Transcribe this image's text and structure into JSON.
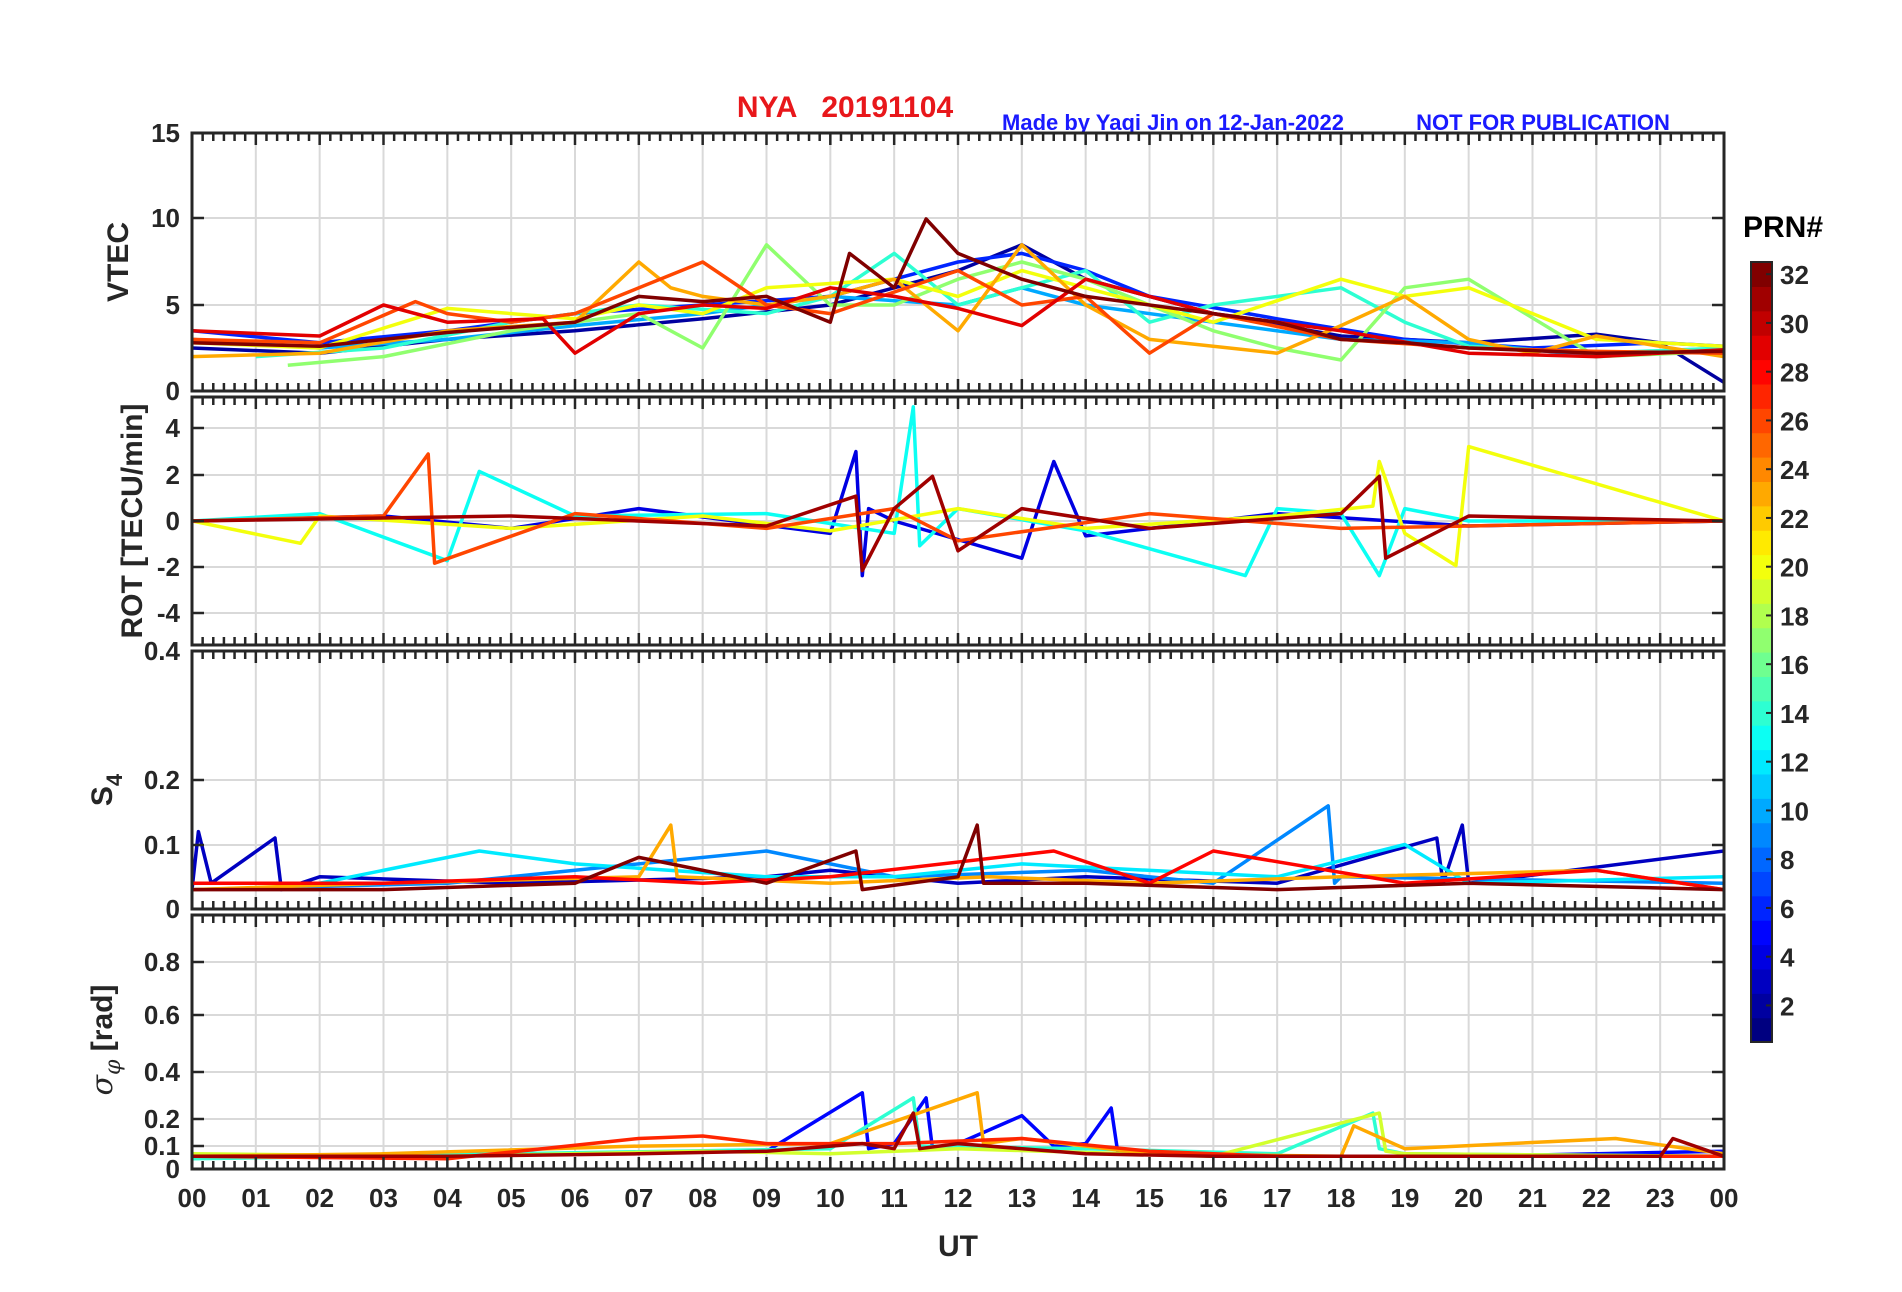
{
  "header": {
    "station_date": "NYA   20191104",
    "credit": "Made by Yaqi Jin on 12-Jan-2022",
    "notice": "NOT FOR PUBLICATION"
  },
  "colors": {
    "title": "#e8171b",
    "credit": "#1a1aff",
    "axes": "#262626",
    "grid": "#d9d9d9"
  },
  "colorbar": {
    "title": "PRN#",
    "range": [
      1,
      32
    ],
    "ticks": [
      "2",
      "4",
      "6",
      "8",
      "10",
      "12",
      "14",
      "16",
      "18",
      "20",
      "22",
      "24",
      "26",
      "28",
      "30",
      "32"
    ],
    "colormap": "jet"
  },
  "chart_data": [
    {
      "type": "line",
      "panel": "vtec",
      "ylabel": "VTEC",
      "ylim": [
        0,
        15
      ],
      "yticks": [
        "0",
        "5",
        "10",
        "15"
      ],
      "xlim": [
        0,
        24
      ],
      "grid": true,
      "series": [
        {
          "prn": 2,
          "x": [
            0,
            2,
            4,
            6,
            8,
            10,
            12,
            13,
            14,
            16,
            18,
            20,
            22,
            23,
            24
          ],
          "y": [
            2.5,
            2.2,
            3,
            3.5,
            4.2,
            5,
            7,
            8.5,
            6.5,
            4.5,
            3.2,
            2.8,
            3.3,
            2.8,
            0.5
          ]
        },
        {
          "prn": 6,
          "x": [
            0,
            2,
            4,
            6,
            8,
            10,
            11,
            12,
            13,
            14,
            15,
            17,
            19,
            21,
            23,
            24
          ],
          "y": [
            3.5,
            2.8,
            3.5,
            4.5,
            5,
            5.5,
            6.5,
            7.5,
            8,
            7,
            5.5,
            4.2,
            3,
            2.5,
            2.8,
            2.6
          ]
        },
        {
          "prn": 10,
          "x": [
            0,
            2,
            4,
            6,
            8,
            9,
            10,
            12,
            13,
            14,
            16,
            18,
            20,
            22,
            24
          ],
          "y": [
            3,
            2.5,
            3,
            3.8,
            4.5,
            5,
            5.5,
            5,
            6,
            5,
            4,
            3,
            2.8,
            2,
            2.4
          ]
        },
        {
          "prn": 14,
          "x": [
            1,
            3,
            5,
            7,
            9,
            10,
            11,
            12,
            13,
            14,
            15,
            16,
            18,
            19,
            20,
            22,
            24
          ],
          "y": [
            2,
            2.5,
            4,
            5,
            4.5,
            5.5,
            8,
            5,
            6,
            7,
            4,
            5,
            6,
            4,
            2.6,
            2.2,
            2.5
          ]
        },
        {
          "prn": 17,
          "x": [
            1.5,
            3,
            5,
            7,
            8,
            9,
            10,
            11,
            12,
            13,
            14,
            15,
            16,
            17,
            18,
            19,
            20,
            22,
            24
          ],
          "y": [
            1.5,
            2,
            3.5,
            4.5,
            2.5,
            8.5,
            5,
            5,
            6.5,
            7.5,
            6.5,
            5,
            3.5,
            2.5,
            1.8,
            6,
            6.5,
            2,
            2.3
          ]
        },
        {
          "prn": 20,
          "x": [
            0,
            2,
            4,
            6,
            7,
            8,
            9,
            11,
            12,
            13,
            14,
            16,
            18,
            19,
            20,
            22,
            24
          ],
          "y": [
            2.8,
            2.5,
            4.8,
            4.2,
            5,
            4.5,
            6,
            6.5,
            5.5,
            7,
            6,
            4,
            6.5,
            5.5,
            6,
            3,
            2.6
          ]
        },
        {
          "prn": 23,
          "x": [
            0,
            2,
            4,
            6,
            7,
            7.5,
            8,
            9,
            10,
            11,
            12,
            13,
            14,
            15,
            17,
            18,
            19,
            20,
            21,
            22,
            24
          ],
          "y": [
            2,
            2.2,
            3.5,
            4,
            7.5,
            6,
            5.5,
            5,
            5.5,
            6.5,
            3.5,
            8.5,
            5,
            3,
            2.2,
            3.8,
            5.5,
            3,
            2.2,
            3.2,
            2
          ]
        },
        {
          "prn": 26,
          "x": [
            0,
            2,
            3.5,
            4,
            5,
            6,
            8,
            9,
            10,
            12,
            13,
            14,
            15,
            16,
            18,
            20,
            22,
            24
          ],
          "y": [
            3,
            2.8,
            5.2,
            4.5,
            4,
            4.5,
            7.5,
            5,
            4.5,
            7,
            5,
            5.5,
            2.2,
            4.5,
            3,
            2.5,
            2.3,
            2.2
          ]
        },
        {
          "prn": 29,
          "x": [
            0,
            2,
            3,
            4,
            5.5,
            6,
            7,
            8,
            9,
            10,
            11,
            12,
            13,
            14,
            16,
            18,
            20,
            22,
            24
          ],
          "y": [
            3.5,
            3.2,
            5,
            4,
            4.2,
            2.2,
            4.5,
            5,
            4.8,
            6,
            5.5,
            4.8,
            3.8,
            6.5,
            4.5,
            3.5,
            2.2,
            2,
            2.4
          ]
        },
        {
          "prn": 32,
          "x": [
            0,
            2,
            4,
            6,
            7,
            8,
            9,
            10,
            10.3,
            11,
            11.5,
            12,
            13,
            14,
            16,
            17,
            18,
            19,
            20,
            22,
            24
          ],
          "y": [
            2.8,
            2.6,
            3.4,
            4,
            5.5,
            5.2,
            5.5,
            4,
            8,
            6,
            10,
            8,
            6.5,
            5.5,
            4.5,
            4,
            3,
            2.8,
            2.5,
            2.2,
            2.3
          ]
        }
      ]
    },
    {
      "type": "line",
      "panel": "rot",
      "ylabel": "ROT [TECU/min]",
      "ylim": [
        -5,
        5
      ],
      "yticks": [
        "-4",
        "-2",
        "0",
        "2",
        "4"
      ],
      "xlim": [
        0,
        24
      ],
      "grid": true,
      "series": [
        {
          "prn": 4,
          "x": [
            0,
            3,
            5,
            7,
            10,
            10.4,
            10.5,
            10.6,
            11,
            13,
            13.5,
            14,
            17,
            20,
            24
          ],
          "y": [
            0,
            0.2,
            -0.3,
            0.5,
            -0.5,
            2.8,
            -2.2,
            0.5,
            0,
            -1.5,
            2.4,
            -0.6,
            0.3,
            -0.2,
            0
          ]
        },
        {
          "prn": 13,
          "x": [
            0,
            2,
            4,
            4.5,
            6,
            9,
            11,
            11.3,
            11.4,
            12,
            14,
            16.5,
            17,
            18,
            18.6,
            19,
            20,
            24
          ],
          "y": [
            0,
            0.3,
            -1.6,
            2,
            0.2,
            0.3,
            -0.5,
            4.6,
            -1,
            0.5,
            -0.4,
            -2.2,
            0.5,
            0.3,
            -2.2,
            0.5,
            0,
            0
          ]
        },
        {
          "prn": 20,
          "x": [
            0,
            1.7,
            2,
            5,
            8,
            10,
            12,
            14,
            17,
            18.5,
            18.6,
            19,
            19.8,
            20,
            24
          ],
          "y": [
            0,
            -0.9,
            0.2,
            -0.3,
            0.2,
            -0.4,
            0.5,
            -0.3,
            0.2,
            0.6,
            2.4,
            -0.5,
            -1.8,
            3,
            0
          ]
        },
        {
          "prn": 26,
          "x": [
            0,
            3,
            3.7,
            3.8,
            6,
            9,
            11,
            12,
            15,
            18,
            24
          ],
          "y": [
            0,
            0.2,
            2.7,
            -1.7,
            0.3,
            -0.3,
            0.5,
            -0.8,
            0.3,
            -0.3,
            0
          ]
        },
        {
          "prn": 31,
          "x": [
            0,
            5,
            9,
            10.4,
            10.5,
            11,
            11.6,
            12,
            13,
            15,
            18,
            18.6,
            18.7,
            20,
            24
          ],
          "y": [
            0,
            0.2,
            -0.2,
            1,
            -2,
            0.5,
            1.8,
            -1.2,
            0.5,
            -0.3,
            0.3,
            1.8,
            -1.5,
            0.2,
            0
          ]
        }
      ]
    },
    {
      "type": "line",
      "panel": "s4",
      "ylabel": "S4",
      "ylim": [
        0,
        0.4
      ],
      "yticks": [
        "0",
        "0.1",
        "0.2",
        "0.4"
      ],
      "xlim": [
        0,
        24
      ],
      "grid": true,
      "series": [
        {
          "prn": 3,
          "x": [
            0,
            0.1,
            0.3,
            1.3,
            1.4,
            2,
            5,
            9,
            10,
            12,
            14,
            17,
            19.5,
            19.6,
            19.9,
            20,
            24
          ],
          "y": [
            0.03,
            0.12,
            0.04,
            0.11,
            0.03,
            0.05,
            0.04,
            0.05,
            0.06,
            0.04,
            0.05,
            0.04,
            0.11,
            0.04,
            0.13,
            0.04,
            0.09
          ]
        },
        {
          "prn": 9,
          "x": [
            0,
            4,
            6,
            9,
            11,
            14,
            16,
            17.8,
            17.9,
            18,
            24
          ],
          "y": [
            0.03,
            0.04,
            0.06,
            0.09,
            0.05,
            0.06,
            0.04,
            0.16,
            0.04,
            0.05,
            0.04
          ]
        },
        {
          "prn": 12,
          "x": [
            0,
            2,
            4.5,
            6,
            9,
            11,
            13,
            17,
            19,
            20,
            24
          ],
          "y": [
            0.04,
            0.04,
            0.09,
            0.07,
            0.05,
            0.05,
            0.07,
            0.05,
            0.1,
            0.04,
            0.05
          ]
        },
        {
          "prn": 23,
          "x": [
            0,
            3,
            7,
            7.5,
            7.6,
            10,
            12.5,
            15,
            18,
            22,
            24
          ],
          "y": [
            0.03,
            0.04,
            0.05,
            0.13,
            0.05,
            0.04,
            0.05,
            0.04,
            0.05,
            0.06,
            0.03
          ]
        },
        {
          "prn": 28,
          "x": [
            0,
            3,
            6,
            8,
            10,
            13.5,
            15,
            16,
            19,
            22,
            24
          ],
          "y": [
            0.04,
            0.04,
            0.05,
            0.04,
            0.05,
            0.09,
            0.04,
            0.09,
            0.04,
            0.06,
            0.03
          ]
        },
        {
          "prn": 32,
          "x": [
            0,
            3,
            6,
            7,
            9,
            10.4,
            10.5,
            12,
            12.3,
            12.4,
            14,
            17,
            20,
            24
          ],
          "y": [
            0.03,
            0.03,
            0.04,
            0.08,
            0.04,
            0.09,
            0.03,
            0.05,
            0.13,
            0.04,
            0.04,
            0.03,
            0.04,
            0.03
          ]
        }
      ]
    },
    {
      "type": "line",
      "panel": "sigma_phi",
      "ylabel": "σφ [rad]",
      "ylim": [
        0,
        1
      ],
      "yticks": [
        "0",
        "0.1",
        "0.2",
        "0.4",
        "0.6",
        "0.8"
      ],
      "xlim": [
        0,
        24
      ],
      "grid": true,
      "series": [
        {
          "prn": 5,
          "x": [
            0,
            5,
            9,
            10.5,
            10.6,
            11,
            11.5,
            11.6,
            12,
            13,
            13.5,
            14,
            14.4,
            14.5,
            16,
            20,
            24
          ],
          "y": [
            0.05,
            0.06,
            0.07,
            0.3,
            0.08,
            0.1,
            0.28,
            0.08,
            0.1,
            0.21,
            0.09,
            0.1,
            0.24,
            0.07,
            0.05,
            0.05,
            0.07
          ]
        },
        {
          "prn": 14,
          "x": [
            0,
            5,
            10,
            11.3,
            11.4,
            14,
            17,
            18.5,
            18.6,
            19,
            24
          ],
          "y": [
            0.04,
            0.06,
            0.08,
            0.28,
            0.09,
            0.08,
            0.06,
            0.22,
            0.08,
            0.06,
            0.05
          ]
        },
        {
          "prn": 19,
          "x": [
            0,
            4,
            8,
            10,
            12,
            16,
            18.6,
            18.7,
            19,
            24
          ],
          "y": [
            0.06,
            0.05,
            0.07,
            0.06,
            0.08,
            0.05,
            0.22,
            0.07,
            0.06,
            0.05
          ]
        },
        {
          "prn": 23,
          "x": [
            0,
            3,
            7,
            10,
            12.3,
            12.4,
            13,
            15,
            18,
            18.2,
            19,
            22.3,
            24
          ],
          "y": [
            0.05,
            0.06,
            0.09,
            0.1,
            0.3,
            0.1,
            0.12,
            0.06,
            0.05,
            0.17,
            0.08,
            0.12,
            0.06
          ]
        },
        {
          "prn": 27,
          "x": [
            0,
            4,
            7,
            8,
            9,
            11,
            13,
            15,
            17,
            20,
            24
          ],
          "y": [
            0.05,
            0.04,
            0.12,
            0.13,
            0.1,
            0.1,
            0.12,
            0.07,
            0.05,
            0.05,
            0.05
          ]
        },
        {
          "prn": 31,
          "x": [
            0,
            4,
            7,
            9,
            10.5,
            11,
            11.3,
            11.4,
            12,
            14,
            16,
            20,
            23,
            23.2,
            24
          ],
          "y": [
            0.05,
            0.05,
            0.06,
            0.07,
            0.1,
            0.08,
            0.22,
            0.08,
            0.1,
            0.06,
            0.05,
            0.05,
            0.05,
            0.12,
            0.05
          ]
        }
      ]
    }
  ],
  "x_axis": {
    "label": "UT",
    "ticks": [
      "00",
      "01",
      "02",
      "03",
      "04",
      "05",
      "06",
      "07",
      "08",
      "09",
      "10",
      "11",
      "12",
      "13",
      "14",
      "15",
      "16",
      "17",
      "18",
      "19",
      "20",
      "21",
      "22",
      "23",
      "00"
    ]
  }
}
